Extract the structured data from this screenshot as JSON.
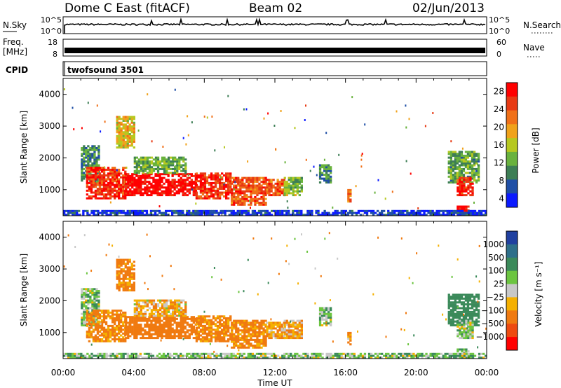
{
  "header": {
    "station": "Dome C East (fitACF)",
    "beam": "Beam 02",
    "date": "02/Jun/2013"
  },
  "panels": {
    "nsky": {
      "label": "N.Sky",
      "ticks": [
        "10^5",
        "10^0"
      ],
      "right_label": "N.Search",
      "right_ticks": [
        "10^5",
        "10^0"
      ]
    },
    "freq": {
      "label_line1": "Freq.",
      "label_line2": "[MHz]",
      "ticks": [
        "18",
        "8"
      ],
      "right_label": "Nave",
      "right_ticks": [
        "60",
        "0"
      ]
    },
    "cpid": {
      "label": "CPID",
      "value": "twofsound 3501"
    }
  },
  "chart_data": [
    {
      "type": "heatmap",
      "name": "Power",
      "ylabel": "Slant Range [km]",
      "ylim": [
        180,
        4500
      ],
      "yticks": [
        1000,
        2000,
        3000,
        4000
      ],
      "xlim": [
        0,
        24
      ],
      "colorbar": {
        "label": "Power [dB]",
        "ticks": [
          4,
          8,
          12,
          16,
          20,
          24,
          28
        ],
        "tick_labels": [
          "4",
          "8",
          "12",
          "16",
          "20",
          "24",
          "28"
        ],
        "colors": [
          "#0b1aff",
          "#1f4fa6",
          "#3d7e55",
          "#69b23d",
          "#b6c81f",
          "#f0a21a",
          "#f07018",
          "#e83a14",
          "#ff0000"
        ]
      },
      "regions": [
        {
          "t": [
            1.0,
            2.0
          ],
          "r": [
            1200,
            2400
          ],
          "v": 10
        },
        {
          "t": [
            1.3,
            3.5
          ],
          "r": [
            700,
            1700
          ],
          "v": 26
        },
        {
          "t": [
            3.5,
            7.5
          ],
          "r": [
            800,
            1500
          ],
          "v": 29
        },
        {
          "t": [
            3.0,
            4.0
          ],
          "r": [
            2300,
            3300
          ],
          "v": 18
        },
        {
          "t": [
            4.0,
            7.0
          ],
          "r": [
            1500,
            2000
          ],
          "v": 13
        },
        {
          "t": [
            7.5,
            9.5
          ],
          "r": [
            700,
            1500
          ],
          "v": 26
        },
        {
          "t": [
            9.5,
            11.5
          ],
          "r": [
            500,
            1400
          ],
          "v": 24
        },
        {
          "t": [
            11.5,
            12.5
          ],
          "r": [
            800,
            1300
          ],
          "v": 24
        },
        {
          "t": [
            12.5,
            13.5
          ],
          "r": [
            800,
            1400
          ],
          "v": 14
        },
        {
          "t": [
            14.5,
            15.2
          ],
          "r": [
            1200,
            1800
          ],
          "v": 10
        },
        {
          "t": [
            16.1,
            16.3
          ],
          "r": [
            600,
            1000
          ],
          "v": 22
        },
        {
          "t": [
            21.8,
            23.5
          ],
          "r": [
            1200,
            2200
          ],
          "v": 12
        },
        {
          "t": [
            22.3,
            23.2
          ],
          "r": [
            800,
            1400
          ],
          "v": 27
        },
        {
          "t": [
            22.3,
            23.0
          ],
          "r": [
            200,
            500
          ],
          "v": 28
        },
        {
          "t": [
            0.0,
            24.0
          ],
          "r": [
            180,
            330
          ],
          "v": 5
        }
      ]
    },
    {
      "type": "heatmap",
      "name": "Velocity",
      "ylabel": "Slant Range [km]",
      "ylim": [
        180,
        4500
      ],
      "yticks": [
        1000,
        2000,
        3000,
        4000
      ],
      "xlim": [
        0,
        24
      ],
      "xticks": [
        0,
        4,
        8,
        12,
        16,
        20,
        24
      ],
      "xtick_labels": [
        "00:00",
        "04:00",
        "08:00",
        "12:00",
        "16:00",
        "20:00",
        "00:00"
      ],
      "xlabel": "Time UT",
      "colorbar": {
        "label": "Velocity [m s⁻¹]",
        "ticks": [
          1000,
          500,
          100,
          25,
          -25,
          -100,
          -500,
          -1000
        ],
        "tick_labels": [
          "1000",
          "500",
          "100",
          "25",
          "−25",
          "−100",
          "−500",
          "−1000"
        ],
        "colors": [
          "#2040a0",
          "#2e6f8a",
          "#3b8a5a",
          "#6cc540",
          "#c8c8c8",
          "#f5b000",
          "#f07a10",
          "#ee4a10",
          "#ff0000"
        ]
      },
      "regions": [
        {
          "t": [
            1.0,
            2.0
          ],
          "r": [
            1200,
            2400
          ],
          "v": 60
        },
        {
          "t": [
            1.3,
            3.5
          ],
          "r": [
            700,
            1700
          ],
          "v": -150
        },
        {
          "t": [
            3.5,
            7.5
          ],
          "r": [
            800,
            1500
          ],
          "v": -200
        },
        {
          "t": [
            3.0,
            4.0
          ],
          "r": [
            2300,
            3300
          ],
          "v": -150
        },
        {
          "t": [
            4.0,
            7.0
          ],
          "r": [
            1500,
            2000
          ],
          "v": -60
        },
        {
          "t": [
            7.5,
            9.5
          ],
          "r": [
            700,
            1500
          ],
          "v": -150
        },
        {
          "t": [
            9.5,
            11.5
          ],
          "r": [
            500,
            1400
          ],
          "v": -150
        },
        {
          "t": [
            11.5,
            12.5
          ],
          "r": [
            800,
            1300
          ],
          "v": -100
        },
        {
          "t": [
            12.5,
            13.5
          ],
          "r": [
            800,
            1400
          ],
          "v": -80
        },
        {
          "t": [
            14.5,
            15.2
          ],
          "r": [
            1200,
            1800
          ],
          "v": 60
        },
        {
          "t": [
            16.1,
            16.3
          ],
          "r": [
            600,
            1000
          ],
          "v": -100
        },
        {
          "t": [
            21.8,
            23.5
          ],
          "r": [
            1200,
            2200
          ],
          "v": 300
        },
        {
          "t": [
            22.3,
            23.2
          ],
          "r": [
            800,
            1400
          ],
          "v": 50
        },
        {
          "t": [
            22.3,
            23.0
          ],
          "r": [
            200,
            500
          ],
          "v": 100
        },
        {
          "t": [
            0.0,
            24.0
          ],
          "r": [
            180,
            330
          ],
          "v": 60
        }
      ]
    }
  ]
}
